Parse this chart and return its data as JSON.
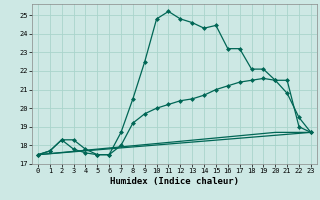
{
  "xlabel": "Humidex (Indice chaleur)",
  "bg_color": "#cde8e4",
  "grid_color": "#aad4cc",
  "line_color": "#006655",
  "xlim": [
    -0.5,
    23.5
  ],
  "ylim": [
    17,
    25.6
  ],
  "xticks": [
    0,
    1,
    2,
    3,
    4,
    5,
    6,
    7,
    8,
    9,
    10,
    11,
    12,
    13,
    14,
    15,
    16,
    17,
    18,
    19,
    20,
    21,
    22,
    23
  ],
  "yticks": [
    17,
    18,
    19,
    20,
    21,
    22,
    23,
    24,
    25
  ],
  "curve1_x": [
    0,
    1,
    2,
    3,
    4,
    5,
    6,
    7,
    8,
    9,
    10,
    11,
    12,
    13,
    14,
    15,
    16,
    17,
    18,
    19,
    20,
    21,
    22,
    23
  ],
  "curve1_y": [
    17.5,
    17.7,
    18.3,
    18.3,
    17.8,
    17.5,
    17.5,
    18.7,
    20.5,
    22.5,
    24.8,
    25.2,
    24.8,
    24.6,
    24.3,
    24.45,
    23.2,
    23.2,
    22.1,
    22.1,
    21.5,
    20.8,
    19.5,
    18.7
  ],
  "curve2_x": [
    0,
    1,
    2,
    3,
    4,
    5,
    6,
    7,
    8,
    9,
    10,
    11,
    12,
    13,
    14,
    15,
    16,
    17,
    18,
    19,
    20,
    21,
    22,
    23
  ],
  "curve2_y": [
    17.5,
    17.7,
    18.3,
    17.8,
    17.6,
    17.5,
    17.5,
    18.0,
    19.2,
    19.7,
    20.0,
    20.2,
    20.4,
    20.5,
    20.7,
    21.0,
    21.2,
    21.4,
    21.5,
    21.6,
    21.5,
    21.5,
    19.0,
    18.7
  ],
  "curve3_x": [
    0,
    1,
    2,
    3,
    4,
    5,
    6,
    7,
    8,
    9,
    10,
    11,
    12,
    13,
    14,
    15,
    16,
    17,
    18,
    19,
    20,
    21,
    22,
    23
  ],
  "curve3_y": [
    17.5,
    17.56,
    17.62,
    17.68,
    17.74,
    17.8,
    17.86,
    17.92,
    17.98,
    18.04,
    18.1,
    18.16,
    18.22,
    18.28,
    18.34,
    18.4,
    18.46,
    18.52,
    18.58,
    18.64,
    18.7,
    18.7,
    18.7,
    18.7
  ],
  "curve4_x": [
    0,
    23
  ],
  "curve4_y": [
    17.5,
    18.7
  ],
  "marker": "D",
  "markersize": 2.5,
  "linewidth": 0.9,
  "xlabel_fontsize": 6.5,
  "tick_fontsize": 5.0
}
